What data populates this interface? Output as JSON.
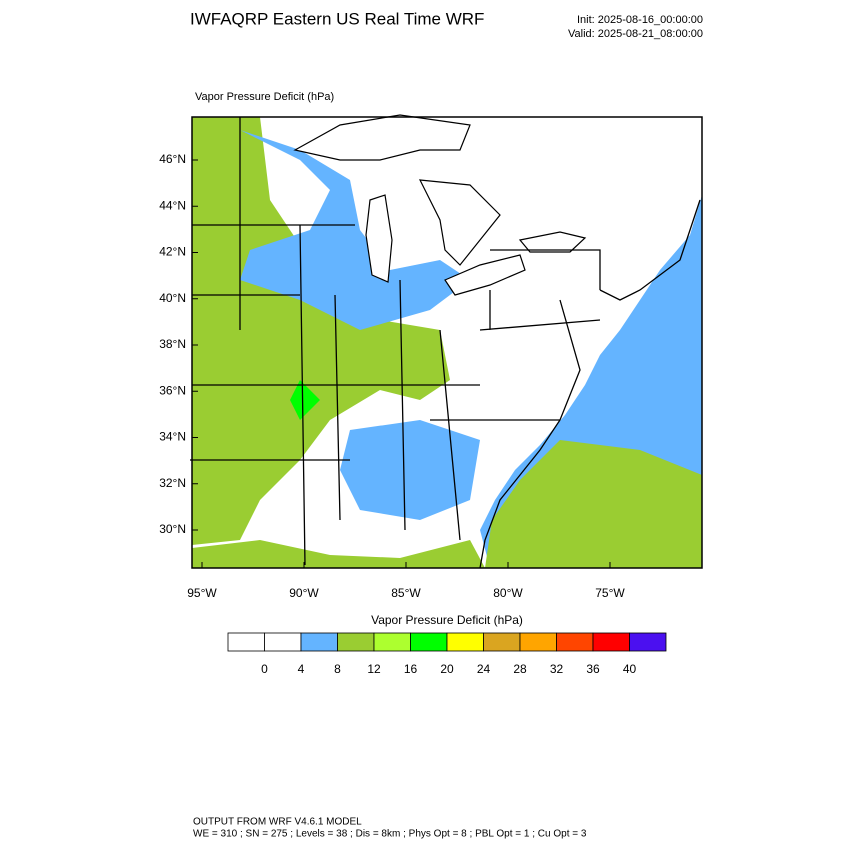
{
  "header": {
    "title": "IWFAQRP Eastern US Real Time WRF",
    "init": "Init: 2025-08-16_00:00:00",
    "valid": "Valid: 2025-08-21_08:00:00"
  },
  "plot": {
    "title": "Vapor Pressure Deficit   (hPa)",
    "lat_labels": [
      "46°N",
      "44°N",
      "42°N",
      "40°N",
      "38°N",
      "36°N",
      "34°N",
      "32°N",
      "30°N"
    ],
    "lon_labels": [
      "95°W",
      "90°W",
      "85°W",
      "80°W",
      "75°W"
    ]
  },
  "colorbar": {
    "title": "Vapor Pressure Deficit  (hPa)",
    "levels": [
      0,
      4,
      8,
      12,
      16,
      20,
      24,
      28,
      32,
      36,
      40
    ],
    "colors": [
      "#ffffff",
      "#ffffff",
      "#64b4ff",
      "#9acd32",
      "#adff2f",
      "#00ff00",
      "#ffff00",
      "#daa520",
      "#ffa500",
      "#ff4500",
      "#ff0000",
      "#4b10f0"
    ]
  },
  "footer": {
    "line1": "OUTPUT FROM WRF V4.6.1 MODEL",
    "line2": "WE = 310 ; SN = 275 ; Levels = 38 ; Dis = 8km ; Phys Opt = 8 ; PBL Opt = 1 ; Cu Opt = 3"
  }
}
